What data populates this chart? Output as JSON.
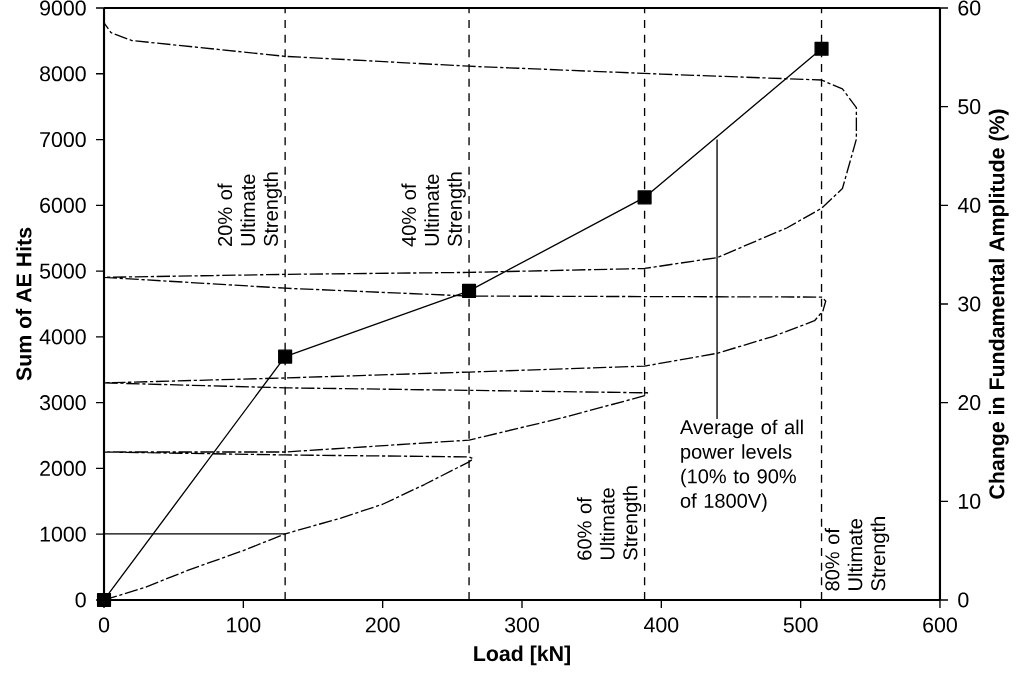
{
  "chart_data": {
    "type": "line",
    "xlabel": "Load [kN]",
    "ylabel": "Sum of AE Hits",
    "y2label": "Change in Fundamental Amplitude (%)",
    "xlim": [
      0,
      600
    ],
    "xticks": [
      0,
      100,
      200,
      300,
      400,
      500,
      600
    ],
    "ylim": [
      0,
      9000
    ],
    "yticks": [
      0,
      1000,
      2000,
      3000,
      4000,
      5000,
      6000,
      7000,
      8000,
      9000
    ],
    "y2lim": [
      0,
      60
    ],
    "y2ticks": [
      0,
      10,
      20,
      30,
      40,
      50,
      60
    ],
    "grid": false,
    "series": [
      {
        "color": "#000000",
        "marker": "square",
        "line_style": "solid",
        "x": [
          0,
          130,
          262,
          388,
          515
        ],
        "values": [
          0,
          3700,
          4700,
          6120,
          8380
        ]
      },
      {
        "axis": "y2",
        "color": "#000000",
        "marker": "none",
        "line_style": "dashed",
        "x": [
          0,
          30,
          60,
          100,
          130,
          0,
          130,
          170,
          200,
          230,
          262,
          265,
          262,
          130,
          0,
          130,
          262,
          330,
          388,
          390,
          388,
          130,
          0,
          130,
          262,
          388,
          440,
          480,
          510,
          516,
          518,
          515,
          262,
          130,
          0,
          130,
          262,
          388,
          440,
          490,
          515,
          530,
          540,
          540,
          530,
          515,
          400,
          262,
          130,
          20,
          5,
          0
        ],
        "values": [
          0,
          1.3,
          3.0,
          5.0,
          6.7,
          6.7,
          6.7,
          8.3,
          9.7,
          11.7,
          14.0,
          14.3,
          14.5,
          14.7,
          15.0,
          15.0,
          16.2,
          18.5,
          20.7,
          21.0,
          21.0,
          21.5,
          22.0,
          22.5,
          23.1,
          23.7,
          25.0,
          26.7,
          28.3,
          29.3,
          30.3,
          30.7,
          30.8,
          31.6,
          32.7,
          33.0,
          33.2,
          33.6,
          34.7,
          37.7,
          39.7,
          41.7,
          46.7,
          49.9,
          51.8,
          52.7,
          53.3,
          54.1,
          55.1,
          56.7,
          57.5,
          58.5
        ]
      }
    ],
    "ref_lines": [
      {
        "axis": "x",
        "value": 130,
        "label": "20% of Ultimate Strength",
        "line_style": "dashed"
      },
      {
        "axis": "x",
        "value": 262,
        "label": "40% of Ultimate Strength",
        "line_style": "dashed"
      },
      {
        "axis": "x",
        "value": 388,
        "label": "60% of Ultimate Strength",
        "line_style": "dashed"
      },
      {
        "axis": "x",
        "value": 515,
        "label": "80% of Ultimate Strength",
        "line_style": "dashed"
      }
    ],
    "annotations": [
      {
        "text": "Average of all power levels (10% to 90% of 1800V)",
        "x": 440,
        "y": 7000
      }
    ]
  }
}
